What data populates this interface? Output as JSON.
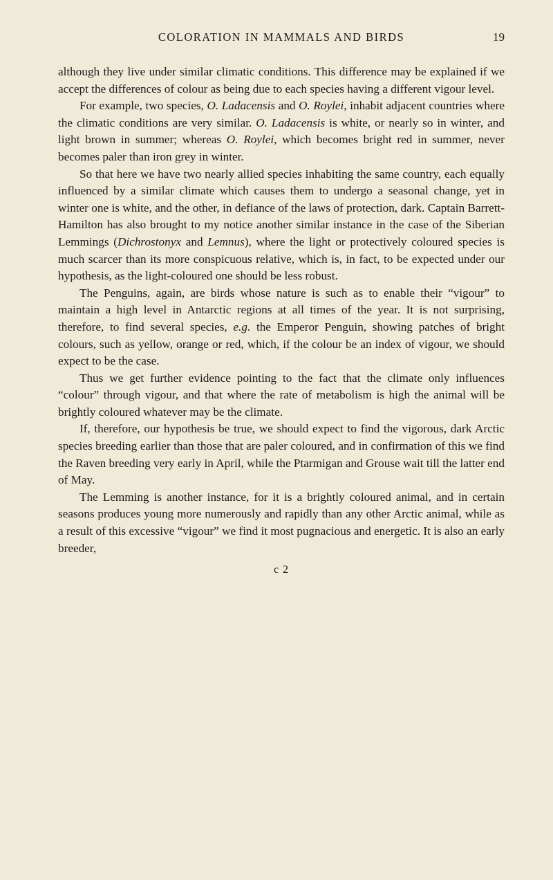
{
  "page": {
    "background_color": "#f0ead8",
    "text_color": "#1a1a1a",
    "font_family": "Century Schoolbook, Georgia, serif",
    "body_fontsize_pt": 13,
    "line_height": 1.43,
    "running_head": "COLORATION IN MAMMALS AND BIRDS",
    "page_number": "19",
    "signature": "c 2",
    "paragraphs": [
      {
        "indent": false,
        "html": "although they live under similar climatic conditions. This difference may be explained if we accept the differences of colour as being due to each species having a different vigour level."
      },
      {
        "indent": true,
        "html": "For example, two species, <span class=\"italic\">O. Ladacensis</span> and <span class=\"italic\">O. Roylei</span>, inhabit adjacent countries where the climatic conditions are very similar. <span class=\"italic\">O. Ladacensis</span> is white, or nearly so in winter, and light brown in summer; whereas <span class=\"italic\">O. Roylei</span>, which becomes bright red in summer, never becomes paler than iron grey in winter."
      },
      {
        "indent": true,
        "html": "So that here we have two nearly allied species inhabiting the same country, each equally influenced by a similar climate which causes them to undergo a seasonal change, yet in winter one is white, and the other, in defiance of the laws of protection, dark. Captain Barrett-Hamilton has also brought to my notice another similar instance in the case of the Siberian Lemmings (<span class=\"italic\">Dichrostonyx</span> and <span class=\"italic\">Lemnus</span>), where the light or protectively coloured species is much scarcer than its more conspicuous relative, which is, in fact, to be expected under our hypothesis, as the light-coloured one should be less robust."
      },
      {
        "indent": true,
        "html": "The Penguins, again, are birds whose nature is such as to enable their &ldquo;vigour&rdquo; to maintain a high level in Antarctic regions at all times of the year. It is not surprising, therefore, to find several species, <span class=\"italic\">e.g.</span> the Emperor Penguin, showing patches of bright colours, such as yellow, orange or red, which, if the colour be an index of vigour, we should expect to be the case."
      },
      {
        "indent": true,
        "html": "Thus we get further evidence pointing to the fact that the climate only influences &ldquo;colour&rdquo; through vigour, and that where the rate of metabolism is high the animal will be brightly coloured whatever may be the climate."
      },
      {
        "indent": true,
        "html": "If, therefore, our hypothesis be true, we should expect to find the vigorous, dark Arctic species breeding earlier than those that are paler coloured, and in confirmation of this we find the Raven breeding very early in April, while the Ptarmigan and Grouse wait till the latter end of May."
      },
      {
        "indent": true,
        "html": "The Lemming is another instance, for it is a brightly coloured animal, and in certain seasons produces young more numerously and rapidly than any other Arctic animal, while as a result of this excessive &ldquo;vigour&rdquo; we find it most pugnacious and energetic. It is also an early breeder,"
      }
    ]
  }
}
